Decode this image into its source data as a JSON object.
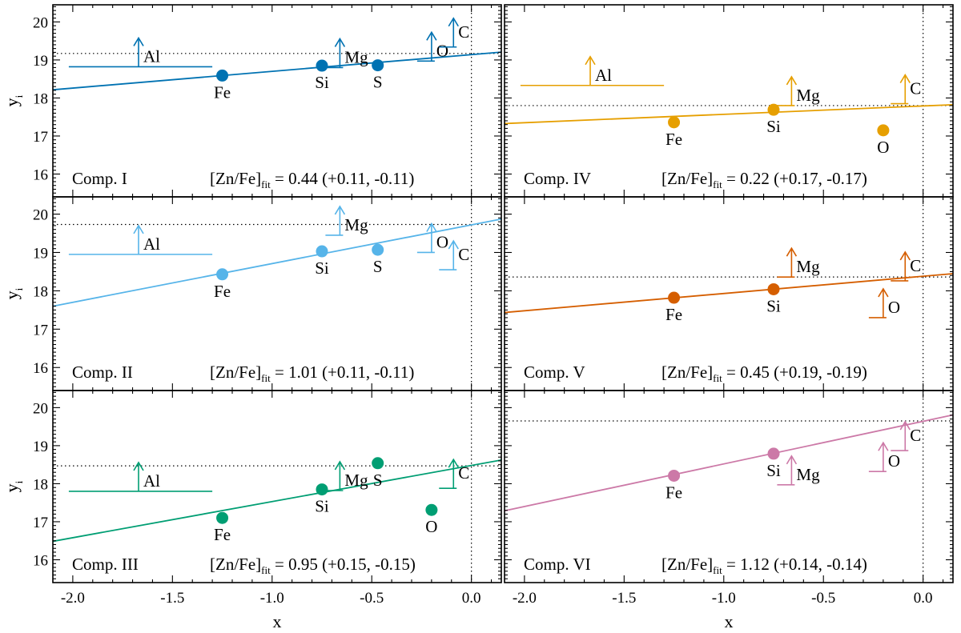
{
  "chart_data": {
    "type": "scatter",
    "xlabel": "x",
    "ylabel": "y",
    "ylabel_sub": "i",
    "xlim": [
      -2.1,
      0.15
    ],
    "ylim": [
      15.4,
      20.45
    ],
    "xticks": [
      -2.0,
      -1.5,
      -1.0,
      -0.5,
      0.0
    ],
    "xtick_labels": [
      "-2.0",
      "-1.5",
      "-1.0",
      "-0.5",
      "0.0"
    ],
    "yticks": [
      16,
      17,
      18,
      19,
      20
    ],
    "ytick_labels": [
      "16",
      "17",
      "18",
      "19",
      "20"
    ],
    "vertical_reference_x": 0.0,
    "panels": [
      {
        "name": "Comp. I",
        "color": "#0072B2",
        "fit_label": "[Zn/Fe]",
        "fit_sub": "fit",
        "fit_value": "0.44 (+0.11, -0.11)",
        "fit_line": {
          "slope": 0.44,
          "intercept": 19.14
        },
        "hline_y": 19.17,
        "points": [
          {
            "el": "Fe",
            "x": -1.25,
            "y": 18.59
          },
          {
            "el": "Si",
            "x": -0.75,
            "y": 18.85
          },
          {
            "el": "S",
            "x": -0.47,
            "y": 18.86
          }
        ],
        "limits": [
          {
            "el": "Al",
            "x": -1.67,
            "y": 18.82,
            "x0": -2.02,
            "x1": -1.3,
            "dir": "up"
          },
          {
            "el": "Mg",
            "x": -0.66,
            "y": 18.8,
            "dir": "up"
          },
          {
            "el": "O",
            "x": -0.2,
            "y": 18.97,
            "dir": "up"
          },
          {
            "el": "C",
            "x": -0.09,
            "y": 19.34,
            "dir": "up"
          }
        ]
      },
      {
        "name": "Comp. IV",
        "color": "#E69F00",
        "fit_label": "[Zn/Fe]",
        "fit_sub": "fit",
        "fit_value": "0.22 (+0.17, -0.17)",
        "fit_line": {
          "slope": 0.22,
          "intercept": 17.79
        },
        "hline_y": 17.8,
        "points": [
          {
            "el": "Fe",
            "x": -1.25,
            "y": 17.36
          },
          {
            "el": "Si",
            "x": -0.75,
            "y": 17.69
          },
          {
            "el": "O",
            "x": -0.2,
            "y": 17.15
          }
        ],
        "limits": [
          {
            "el": "Al",
            "x": -1.67,
            "y": 18.33,
            "x0": -2.02,
            "x1": -1.3,
            "dir": "up"
          },
          {
            "el": "Mg",
            "x": -0.66,
            "y": 17.8,
            "dir": "up"
          },
          {
            "el": "C",
            "x": -0.09,
            "y": 17.85,
            "dir": "up"
          }
        ]
      },
      {
        "name": "Comp. II",
        "color": "#56B4E9",
        "fit_label": "[Zn/Fe]",
        "fit_sub": "fit",
        "fit_value": "1.01 (+0.11, -0.11)",
        "fit_line": {
          "slope": 1.01,
          "intercept": 19.72
        },
        "hline_y": 19.73,
        "points": [
          {
            "el": "Fe",
            "x": -1.25,
            "y": 18.43
          },
          {
            "el": "Si",
            "x": -0.75,
            "y": 19.03
          },
          {
            "el": "S",
            "x": -0.47,
            "y": 19.07
          }
        ],
        "limits": [
          {
            "el": "Al",
            "x": -1.67,
            "y": 18.95,
            "x0": -2.02,
            "x1": -1.3,
            "dir": "up"
          },
          {
            "el": "Mg",
            "x": -0.66,
            "y": 19.45,
            "dir": "up"
          },
          {
            "el": "O",
            "x": -0.2,
            "y": 19.0,
            "dir": "up"
          },
          {
            "el": "C",
            "x": -0.09,
            "y": 18.55,
            "dir": "up"
          }
        ]
      },
      {
        "name": "Comp. V",
        "color": "#D55E00",
        "fit_label": "[Zn/Fe]",
        "fit_sub": "fit",
        "fit_value": "0.45 (+0.19, -0.19)",
        "fit_line": {
          "slope": 0.45,
          "intercept": 18.38
        },
        "hline_y": 18.36,
        "points": [
          {
            "el": "Fe",
            "x": -1.25,
            "y": 17.82
          },
          {
            "el": "Si",
            "x": -0.75,
            "y": 18.04
          }
        ],
        "limits": [
          {
            "el": "Mg",
            "x": -0.66,
            "y": 18.36,
            "dir": "up"
          },
          {
            "el": "C",
            "x": -0.09,
            "y": 18.26,
            "dir": "up"
          },
          {
            "el": "O",
            "x": -0.2,
            "y": 17.3,
            "dir": "up"
          }
        ]
      },
      {
        "name": "Comp. III",
        "color": "#009E73",
        "fit_label": "[Zn/Fe]",
        "fit_sub": "fit",
        "fit_value": "0.95 (+0.15, -0.15)",
        "fit_line": {
          "slope": 0.95,
          "intercept": 18.48
        },
        "hline_y": 18.47,
        "points": [
          {
            "el": "Fe",
            "x": -1.25,
            "y": 17.1
          },
          {
            "el": "Si",
            "x": -0.75,
            "y": 17.85
          },
          {
            "el": "S",
            "x": -0.47,
            "y": 18.54
          },
          {
            "el": "O",
            "x": -0.2,
            "y": 17.31
          }
        ],
        "limits": [
          {
            "el": "Al",
            "x": -1.67,
            "y": 17.8,
            "x0": -2.02,
            "x1": -1.3,
            "dir": "up"
          },
          {
            "el": "Mg",
            "x": -0.66,
            "y": 17.82,
            "dir": "up"
          },
          {
            "el": "C",
            "x": -0.09,
            "y": 17.88,
            "dir": "up"
          }
        ]
      },
      {
        "name": "Comp. VI",
        "color": "#CC79A7",
        "fit_label": "[Zn/Fe]",
        "fit_sub": "fit",
        "fit_value": "1.12 (+0.14, -0.14)",
        "fit_line": {
          "slope": 1.12,
          "intercept": 19.64
        },
        "hline_y": 19.65,
        "points": [
          {
            "el": "Fe",
            "x": -1.25,
            "y": 18.21
          },
          {
            "el": "Si",
            "x": -0.75,
            "y": 18.79
          }
        ],
        "limits": [
          {
            "el": "Mg",
            "x": -0.66,
            "y": 17.97,
            "dir": "up"
          },
          {
            "el": "C",
            "x": -0.09,
            "y": 18.87,
            "dir": "up"
          },
          {
            "el": "O",
            "x": -0.2,
            "y": 18.32,
            "dir": "up"
          }
        ]
      }
    ]
  }
}
